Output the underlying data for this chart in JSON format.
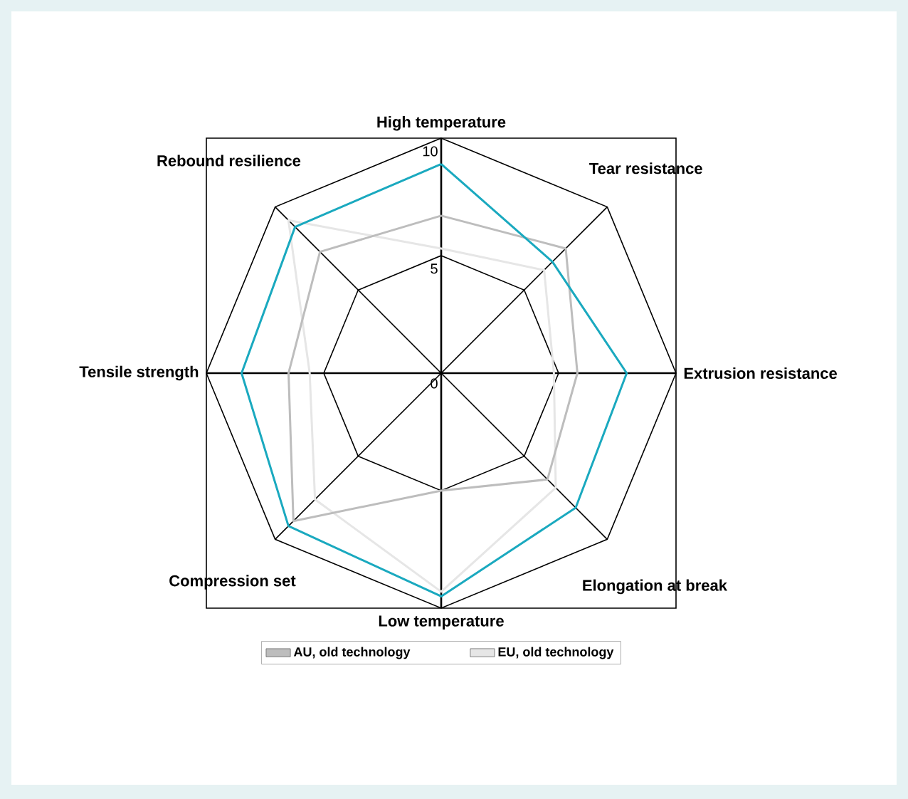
{
  "chart_data": {
    "type": "radar",
    "categories": [
      "High temperature",
      "Tear resistance",
      "Extrusion resistance",
      "Elongation at break",
      "Low temperature",
      "Compression set",
      "Tensile strength",
      "Rebound resilience"
    ],
    "series": [
      {
        "color": "#1aa9bf",
        "values": [
          8.9,
          6.7,
          7.9,
          8.1,
          9.5,
          9.2,
          8.5,
          8.8
        ]
      },
      {
        "name": "AU, old technology",
        "color": "#bdbdbd",
        "values": [
          6.7,
          7.5,
          5.8,
          6.4,
          5.0,
          8.9,
          6.5,
          7.3
        ]
      },
      {
        "name": "EU, old technology",
        "color": "#e6e6e6",
        "values": [
          5.3,
          6.2,
          4.8,
          6.9,
          9.3,
          7.6,
          5.6,
          9.2
        ]
      }
    ],
    "ylim": [
      0,
      10
    ],
    "yticks": [
      0,
      5,
      10
    ],
    "grid": true,
    "legend": "bottom"
  }
}
